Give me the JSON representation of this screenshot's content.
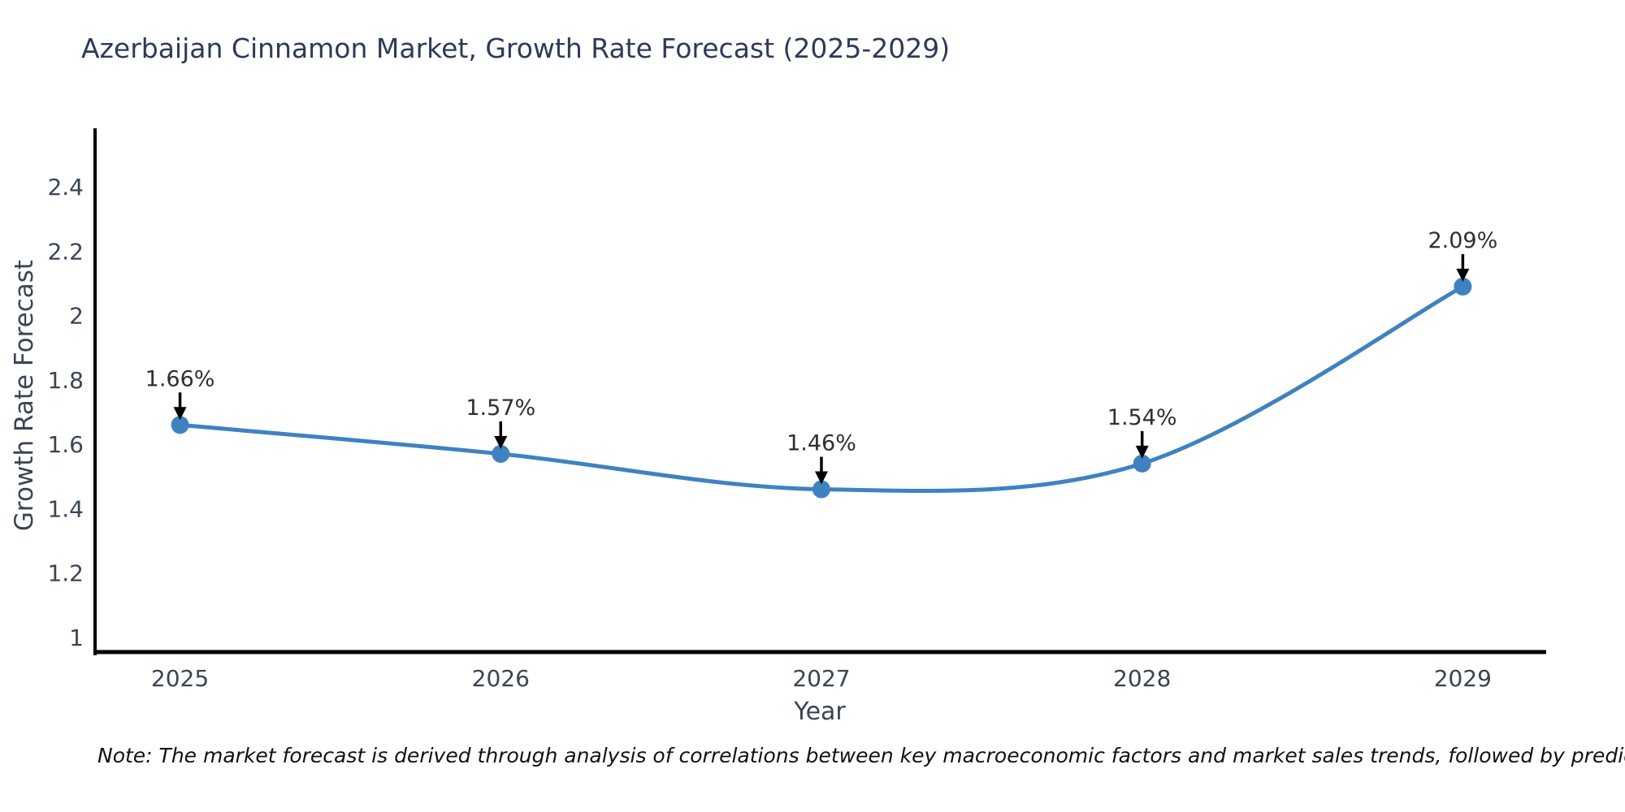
{
  "title": "Azerbaijan Cinnamon Market, Growth Rate Forecast (2025-2029)",
  "note": "Note: The market forecast is derived through analysis of correlations between key macroeconomic factors and market sales trends, followed by predictive modeling to project future sales",
  "chart_data": {
    "type": "line",
    "title": "Azerbaijan Cinnamon Market, Growth Rate Forecast (2025-2029)",
    "xlabel": "Year",
    "ylabel": "Growth Rate Forecast",
    "x": [
      2025,
      2026,
      2027,
      2028,
      2029
    ],
    "series": [
      {
        "name": "Growth Rate Forecast",
        "values": [
          1.66,
          1.57,
          1.46,
          1.54,
          2.09
        ]
      }
    ],
    "point_labels": [
      "1.66%",
      "1.57%",
      "1.46%",
      "1.54%",
      "2.09%"
    ],
    "xtick_labels": [
      "2025",
      "2026",
      "2027",
      "2028",
      "2029"
    ],
    "yticks": [
      1,
      1.2,
      1.4,
      1.6,
      1.8,
      2,
      2.2,
      2.4
    ],
    "ytick_labels": [
      "1",
      "1.2",
      "1.4",
      "1.6",
      "1.8",
      "2",
      "2.2",
      "2.4"
    ],
    "xlim": [
      2024.73,
      2029.26
    ],
    "ylim": [
      0.949,
      2.582
    ],
    "grid": false,
    "legend": "none",
    "colors": {
      "line": "#3f82c0",
      "marker": "#3f82c0",
      "axis": "#000000",
      "title": "#2e3a59",
      "tick": "#3a4454",
      "axis_label": "#3a4454",
      "annotation_text": "#2f2f2f",
      "annotation_arrow": "#000000",
      "background": "#ffffff"
    }
  }
}
